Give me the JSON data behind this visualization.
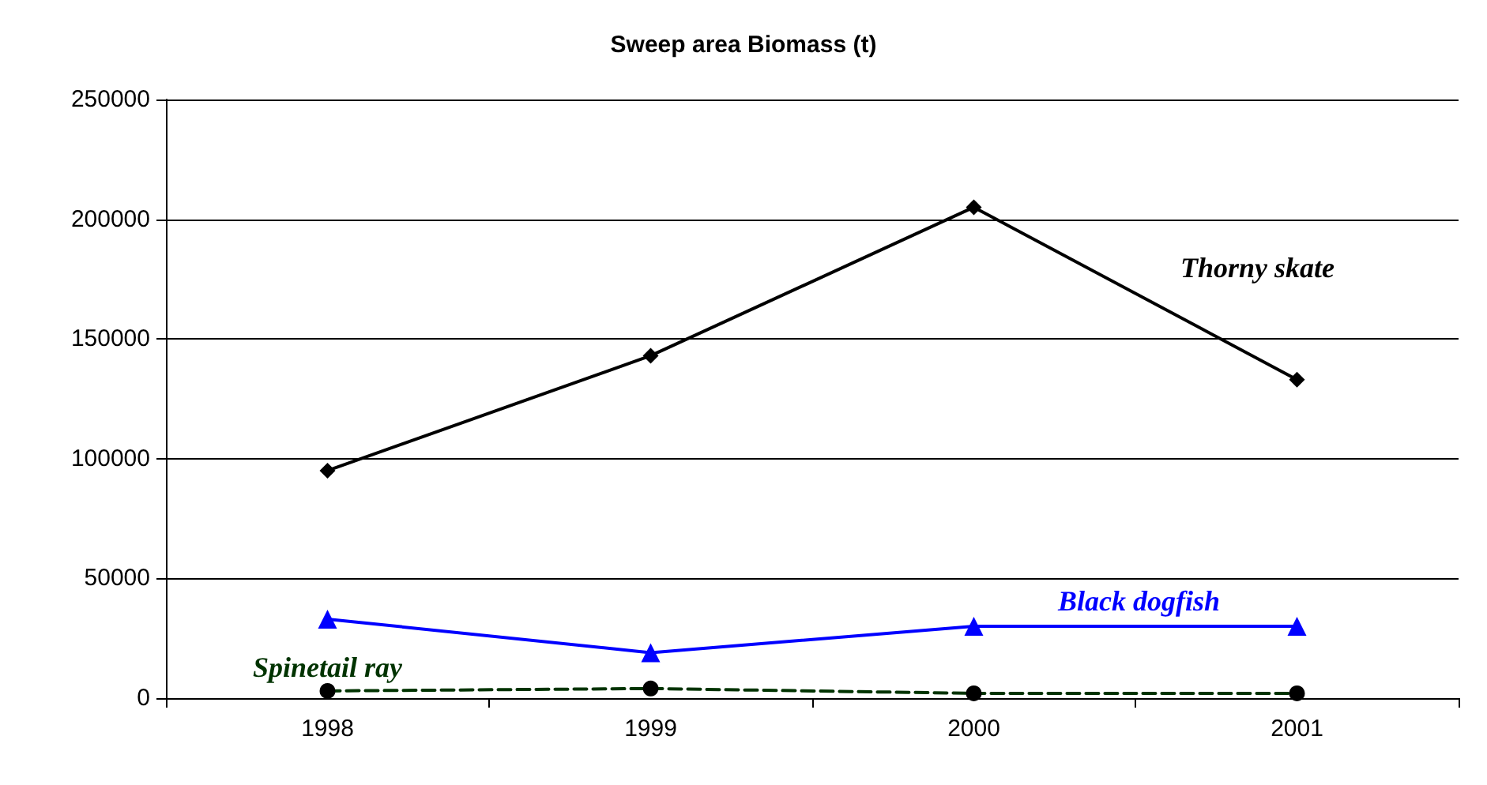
{
  "chart_data": {
    "type": "line",
    "title": "Sweep area Biomass (t)",
    "categories": [
      "1998",
      "1999",
      "2000",
      "2001"
    ],
    "series": [
      {
        "name": "Thorny skate",
        "color": "#000000",
        "values": [
          95000,
          143000,
          205000,
          133000
        ],
        "marker": "diamond",
        "line_style": "solid"
      },
      {
        "name": "Black dogfish",
        "color": "#0000ff",
        "values": [
          33000,
          19000,
          30000,
          30000
        ],
        "marker": "triangle",
        "line_style": "solid"
      },
      {
        "name": "Spinetail ray",
        "color": "#003300",
        "values": [
          3000,
          4000,
          2000,
          2000
        ],
        "marker": "circle",
        "line_style": "dashed"
      }
    ],
    "ylim": [
      0,
      250000
    ],
    "yticks": [
      0,
      50000,
      100000,
      150000,
      200000,
      250000
    ],
    "grid": "y",
    "legend": false
  }
}
